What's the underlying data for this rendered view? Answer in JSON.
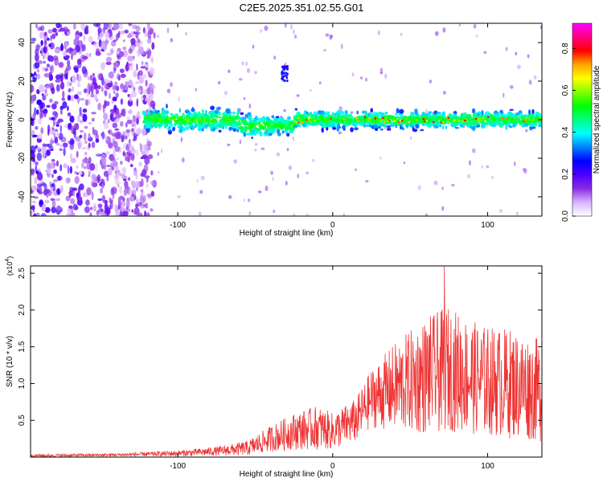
{
  "figure_title": "C2E5.2025.351.02.55.G01",
  "chart_data": [
    {
      "type": "heatmap",
      "xlabel": "Height of straight line (km)",
      "ylabel": "Frequency (Hz)",
      "xlim": [
        -195,
        135
      ],
      "ylim": [
        -50,
        50
      ],
      "x_ticks": [
        -100,
        0,
        100
      ],
      "x_tick_labels": [
        "-100",
        "0",
        "100"
      ],
      "y_ticks": [
        -40,
        -20,
        0,
        20,
        40
      ],
      "y_tick_labels": [
        "-40",
        "-20",
        "0",
        "20",
        "40"
      ],
      "colorbar": {
        "label": "Normalized spectral amplitude",
        "range": [
          0,
          0.92
        ],
        "ticks": [
          0,
          0.2,
          0.4,
          0.6,
          0.8
        ],
        "tick_labels": [
          "0.0",
          "0.2",
          "0.4",
          "0.6",
          "0.8"
        ],
        "colors": [
          "#ffffff",
          "#d9b3ff",
          "#8a2be2",
          "#4b00ff",
          "#0000ff",
          "#0080ff",
          "#00ffff",
          "#00ff80",
          "#00ff00",
          "#80ff00",
          "#ffff00",
          "#ffa500",
          "#ff0000",
          "#ff0080",
          "#ff00ff"
        ]
      },
      "description_regions": [
        {
          "x_range": [
            -195,
            -115
          ],
          "y_range": [
            -50,
            50
          ],
          "level": "low_noise"
        },
        {
          "x_range": [
            -122,
            135
          ],
          "y_center": 0,
          "y_halfwidth": 6,
          "level": "strong_band"
        },
        {
          "x_range": [
            -33,
            -29
          ],
          "y_range": [
            20,
            28
          ],
          "level": "blob"
        }
      ]
    },
    {
      "type": "line",
      "xlabel": "Height of straight line (km)",
      "ylabel": "SNR (10 * v/v)",
      "y_scale_label": "(x10",
      "y_scale_exp": "4",
      "y_scale_close": ")",
      "xlim": [
        -195,
        135
      ],
      "ylim": [
        0,
        2.6
      ],
      "x_ticks": [
        -100,
        0,
        100
      ],
      "x_tick_labels": [
        "-100",
        "0",
        "100"
      ],
      "y_ticks": [
        0.5,
        1.0,
        1.5,
        2.0,
        2.5
      ],
      "y_tick_labels": [
        "0.5",
        "1.0",
        "1.5",
        "2.0",
        "2.5"
      ],
      "series": [
        {
          "name": "SNR",
          "color": "#ee3333",
          "envelope": [
            {
              "x": -195,
              "mean": 0.02,
              "spread": 0.02
            },
            {
              "x": -140,
              "mean": 0.03,
              "spread": 0.02
            },
            {
              "x": -100,
              "mean": 0.05,
              "spread": 0.04
            },
            {
              "x": -75,
              "mean": 0.08,
              "spread": 0.06
            },
            {
              "x": -55,
              "mean": 0.12,
              "spread": 0.1
            },
            {
              "x": -40,
              "mean": 0.25,
              "spread": 0.18
            },
            {
              "x": -25,
              "mean": 0.35,
              "spread": 0.25
            },
            {
              "x": -10,
              "mean": 0.4,
              "spread": 0.3
            },
            {
              "x": 0,
              "mean": 0.35,
              "spread": 0.25
            },
            {
              "x": 15,
              "mean": 0.5,
              "spread": 0.3
            },
            {
              "x": 25,
              "mean": 0.8,
              "spread": 0.4
            },
            {
              "x": 40,
              "mean": 0.95,
              "spread": 0.6
            },
            {
              "x": 60,
              "mean": 1.1,
              "spread": 0.8
            },
            {
              "x": 75,
              "mean": 1.2,
              "spread": 0.85
            },
            {
              "x": 95,
              "mean": 1.05,
              "spread": 0.75
            },
            {
              "x": 115,
              "mean": 1.0,
              "spread": 0.75
            },
            {
              "x": 135,
              "mean": 0.9,
              "spread": 0.7
            }
          ],
          "peak": {
            "x": 72,
            "y": 2.6
          }
        }
      ]
    }
  ]
}
